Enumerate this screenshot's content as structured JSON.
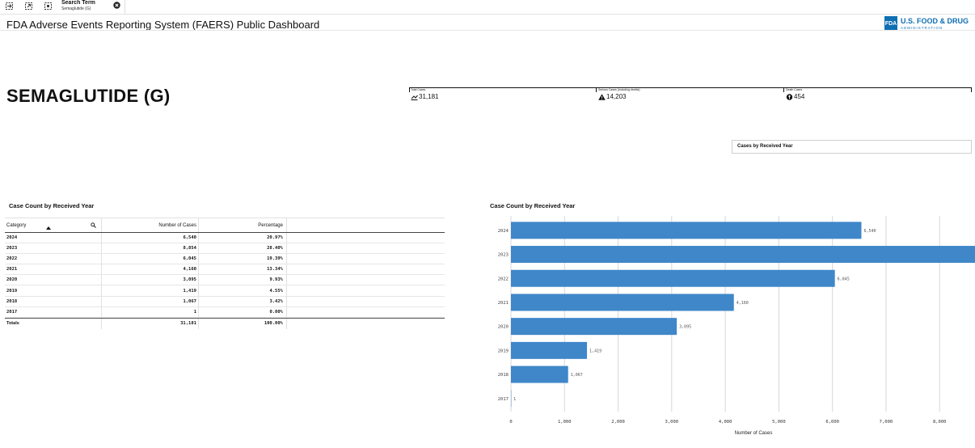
{
  "toolbar": {
    "icons": [
      "smart-search-icon",
      "selections-back-icon",
      "selections-forward-icon"
    ],
    "search_chip": {
      "title": "Search Term",
      "value": "Semaglutide (G)"
    }
  },
  "header": {
    "title": "FDA Adverse Events Reporting System (FAERS) Public Dashboard",
    "logo_abbr": "FDA",
    "logo_name": "U.S. FOOD & DRUG",
    "logo_sub": "ADMINISTRATION"
  },
  "drug": {
    "title": "SEMAGLUTIDE (G)"
  },
  "kpis": [
    {
      "label": "Total Cases",
      "value": "31,181",
      "icon": "trend-up-icon"
    },
    {
      "label": "Serious Cases (Including deaths)",
      "value": "14,203",
      "icon": "warning-icon"
    },
    {
      "label": "Death Cases",
      "value": "454",
      "icon": "death-icon"
    }
  ],
  "filter": {
    "label": "Cases by Received Year"
  },
  "table": {
    "title": "Case Count by Received Year",
    "headers": [
      "Category",
      "Number of Cases",
      "Percentage"
    ],
    "rows": [
      [
        "2024",
        "6,540",
        "20.97%"
      ],
      [
        "2023",
        "8,854",
        "28.40%"
      ],
      [
        "2022",
        "6,045",
        "19.39%"
      ],
      [
        "2021",
        "4,160",
        "13.34%"
      ],
      [
        "2020",
        "3,095",
        "9.93%"
      ],
      [
        "2019",
        "1,419",
        "4.55%"
      ],
      [
        "2018",
        "1,067",
        "3.42%"
      ],
      [
        "2017",
        "1",
        "0.00%"
      ]
    ],
    "totals": [
      "Totals",
      "31,181",
      "100.00%"
    ]
  },
  "chart_title": "Case Count by Received Year",
  "colors": {
    "bar": "#3f87c9",
    "fda_blue": "#0f6fb3"
  },
  "chart_data": {
    "type": "bar",
    "orientation": "horizontal",
    "categories": [
      "2024",
      "2023",
      "2022",
      "2021",
      "2020",
      "2019",
      "2018",
      "2017"
    ],
    "values": [
      6540,
      8854,
      6045,
      4160,
      3095,
      1419,
      1067,
      1
    ],
    "data_labels": [
      "6,540",
      "",
      "6,045",
      "4,160",
      "3,095",
      "1,419",
      "1,067",
      "1"
    ],
    "xlabel": "Number of Cases",
    "xlim": [
      0,
      8600
    ],
    "x_ticks": [
      0,
      1000,
      2000,
      3000,
      4000,
      5000,
      6000,
      7000,
      8000
    ],
    "x_tick_labels": [
      "0",
      "1,000",
      "2,000",
      "3,000",
      "4,000",
      "5,000",
      "6,000",
      "7,000",
      "8,000"
    ],
    "grid": true
  }
}
